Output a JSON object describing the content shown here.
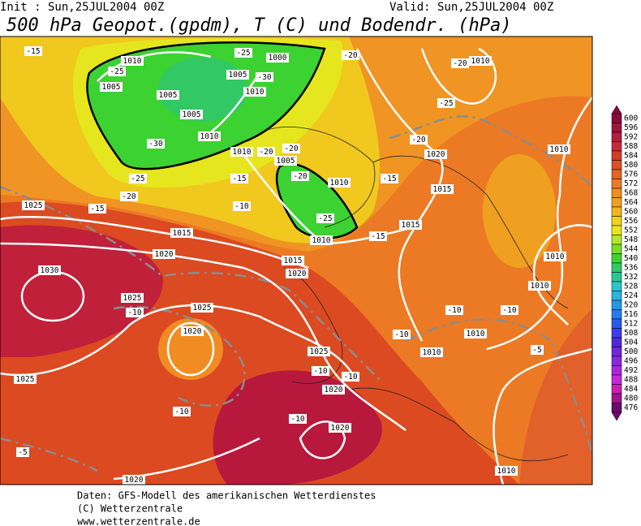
{
  "header": {
    "init": "Init : Sun,25JUL2004 00Z",
    "valid": "Valid: Sun,25JUL2004 00Z",
    "title": "500 hPa Geopot.(gpdm), T (C) und Bodendr. (hPa)"
  },
  "map": {
    "isobar_labels": [
      "1010",
      "1005",
      "1005",
      "1005",
      "1010",
      "1005",
      "1010",
      "1000",
      "1010",
      "1005",
      "1010",
      "1010",
      "1020",
      "1010",
      "1015",
      "1025",
      "1015",
      "1020",
      "1015",
      "1010",
      "1015",
      "1020",
      "1030",
      "1025",
      "1025",
      "1020",
      "1025",
      "1010",
      "1010",
      "1010",
      "1010",
      "1020",
      "1020",
      "1025",
      "1010",
      "1020"
    ],
    "temperature_labels": [
      "-15",
      "-25",
      "-25",
      "-30",
      "-30",
      "-25",
      "-20",
      "-20",
      "-20",
      "-20",
      "-15",
      "-25",
      "-15",
      "-20",
      "-25",
      "-20",
      "-20",
      "-10",
      "-15",
      "-10",
      "-10",
      "-10",
      "-10",
      "-10",
      "-10",
      "-10",
      "-10",
      "-5",
      "-5",
      "-15"
    ]
  },
  "colorbar": {
    "levels": [
      600,
      596,
      592,
      588,
      584,
      580,
      576,
      572,
      568,
      564,
      560,
      556,
      552,
      548,
      544,
      540,
      536,
      532,
      528,
      524,
      520,
      516,
      512,
      508,
      504,
      500,
      496,
      492,
      488,
      484,
      480,
      476
    ],
    "colors": [
      "#8c0a3c",
      "#a0143c",
      "#b41e3c",
      "#c8283c",
      "#d23c28",
      "#dc5028",
      "#e66428",
      "#f07828",
      "#f08c1e",
      "#f0a01e",
      "#f0b41e",
      "#f0d21e",
      "#e6e61e",
      "#b4e628",
      "#78dc28",
      "#3cd232",
      "#32c864",
      "#28c896",
      "#28c8c8",
      "#28b4dc",
      "#2896e6",
      "#2878f0",
      "#285af0",
      "#3c3cf0",
      "#5028dc",
      "#6e28dc",
      "#8c28dc",
      "#aa28dc",
      "#c828dc",
      "#c81eb4",
      "#a0148c",
      "#6e0a6e"
    ]
  },
  "footer": [
    "Daten: GFS-Modell des amerikanischen Wetterdienstes",
    "(C) Wetterzentrale",
    "www.wetterzentrale.de"
  ]
}
